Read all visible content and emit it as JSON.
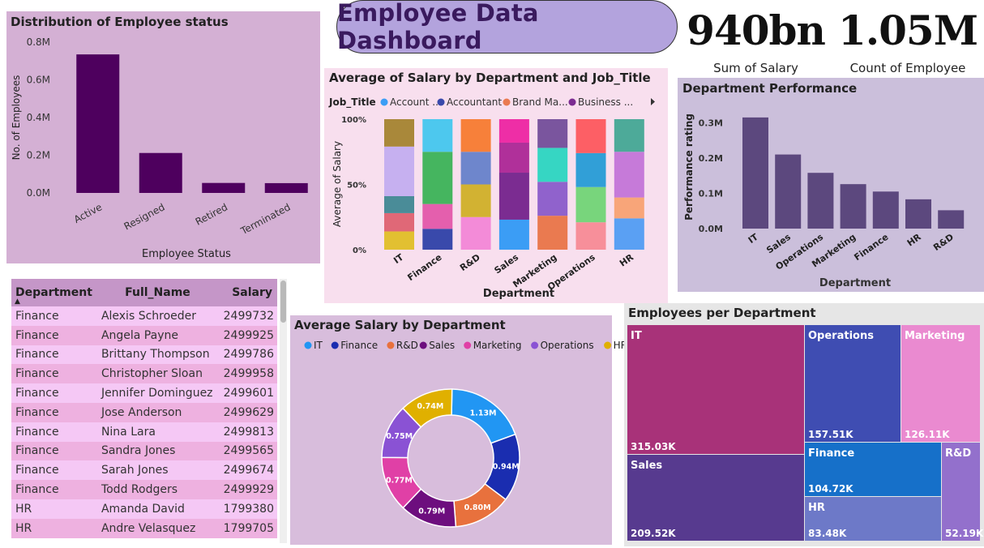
{
  "dashboard_title": "Employee Data Dashboard",
  "kpis": [
    {
      "value": "940bn",
      "label": "Sum of Salary"
    },
    {
      "value": "1.05M",
      "label": "Count of Employee"
    }
  ],
  "colors": {
    "status_bar": "#4e005e",
    "perf_bar": "#5c487e",
    "panel_status": "#d4b0d4",
    "panel_stack": "#f8dfee",
    "panel_perf": "#cbbfdb",
    "panel_donut": "#d8bddc",
    "panel_tree": "#e6e6e6",
    "title_pill": "#b3a3dd"
  },
  "status_chart": {
    "title": "Distribution of Employee status",
    "chart_data": {
      "type": "bar",
      "categories": [
        "Active",
        "Resigned",
        "Retired",
        "Terminated"
      ],
      "values": [
        735000,
        212000,
        53000,
        52000
      ],
      "xlabel": "Employee Status",
      "ylabel": "No. of Employees",
      "ylim": [
        0,
        800000
      ],
      "yticks": [
        "0.0M",
        "0.2M",
        "0.4M",
        "0.6M",
        "0.8M"
      ]
    }
  },
  "stacked_chart": {
    "title": "Average of Salary by Department and Job_Title",
    "legend_title": "Job_Title",
    "legend_items": [
      {
        "label": "Account ...",
        "color": "#3b9df5"
      },
      {
        "label": "Accountant",
        "color": "#3949ab"
      },
      {
        "label": "Brand Ma...",
        "color": "#ea7a50"
      },
      {
        "label": "Business ...",
        "color": "#7b2c91"
      }
    ],
    "legend_more_icon": "chevron-right-icon",
    "chart_data": {
      "type": "bar",
      "stacked": "percent",
      "categories": [
        "IT",
        "Finance",
        "R&D",
        "Sales",
        "Marketing",
        "Operations",
        "HR"
      ],
      "xlabel": "Department",
      "ylabel": "Average of Salary",
      "yticks": [
        "0%",
        "50%",
        "100%"
      ],
      "segments": [
        [
          {
            "v": 14,
            "c": "#e2c031"
          },
          {
            "v": 14,
            "c": "#e06877"
          },
          {
            "v": 13,
            "c": "#4a8c98"
          },
          {
            "v": 38,
            "c": "#c6b0f0"
          },
          {
            "v": 21,
            "c": "#a9883a"
          }
        ],
        [
          {
            "v": 16,
            "c": "#3949ab"
          },
          {
            "v": 19,
            "c": "#e45fad"
          },
          {
            "v": 40,
            "c": "#45b55f"
          },
          {
            "v": 25,
            "c": "#4dc8ee"
          }
        ],
        [
          {
            "v": 25,
            "c": "#f38bd8"
          },
          {
            "v": 25,
            "c": "#d2b232"
          },
          {
            "v": 25,
            "c": "#6e86cc"
          },
          {
            "v": 25,
            "c": "#f7803a"
          }
        ],
        [
          {
            "v": 23,
            "c": "#3b9df5"
          },
          {
            "v": 36,
            "c": "#7b2c91"
          },
          {
            "v": 23,
            "c": "#b0309a"
          },
          {
            "v": 18,
            "c": "#ee2ea6"
          }
        ],
        [
          {
            "v": 26,
            "c": "#ea7a50"
          },
          {
            "v": 26,
            "c": "#9062cc"
          },
          {
            "v": 26,
            "c": "#36d6c3"
          },
          {
            "v": 22,
            "c": "#7a559e"
          }
        ],
        [
          {
            "v": 21,
            "c": "#f78f9a"
          },
          {
            "v": 27,
            "c": "#78d57c"
          },
          {
            "v": 26,
            "c": "#319fd7"
          },
          {
            "v": 26,
            "c": "#fd5f65"
          }
        ],
        [
          {
            "v": 24,
            "c": "#5aa0f3"
          },
          {
            "v": 16,
            "c": "#f8a579"
          },
          {
            "v": 35,
            "c": "#c67ad9"
          },
          {
            "v": 25,
            "c": "#4daa99"
          }
        ]
      ]
    }
  },
  "perf_chart": {
    "title": "Department Performance",
    "chart_data": {
      "type": "bar",
      "categories": [
        "IT",
        "Sales",
        "Operations",
        "Marketing",
        "Finance",
        "HR",
        "R&D"
      ],
      "values": [
        315000,
        210000,
        158000,
        126000,
        105000,
        83000,
        52000
      ],
      "xlabel": "Department",
      "ylabel": "Performance rating",
      "ylim": [
        0,
        340000
      ],
      "yticks": [
        "0.0M",
        "0.1M",
        "0.2M",
        "0.3M"
      ]
    }
  },
  "donut_chart": {
    "title": "Average Salary by Department",
    "legend": [
      {
        "label": "IT",
        "color": "#2196f3"
      },
      {
        "label": "Finance",
        "color": "#1a2db0"
      },
      {
        "label": "R&D",
        "color": "#e8713d"
      },
      {
        "label": "Sales",
        "color": "#6d0e7e"
      },
      {
        "label": "Marketing",
        "color": "#e040a6"
      },
      {
        "label": "Operations",
        "color": "#8a52d4"
      },
      {
        "label": "HR",
        "color": "#e0b000"
      }
    ],
    "chart_data": {
      "type": "pie",
      "hole": true,
      "categories": [
        "IT",
        "Finance",
        "R&D",
        "Sales",
        "Marketing",
        "Operations",
        "HR"
      ],
      "values": [
        1.13,
        0.94,
        0.8,
        0.79,
        0.77,
        0.75,
        0.74
      ],
      "labels": [
        "1.13M",
        "0.94M",
        "0.80M",
        "0.79M",
        "0.77M",
        "0.75M",
        "0.74M"
      ]
    }
  },
  "treemap": {
    "title": "Employees per Department",
    "chart_data": {
      "type": "treemap",
      "items": [
        {
          "name": "IT",
          "value": "315.03K",
          "color": "#a83279"
        },
        {
          "name": "Sales",
          "value": "209.52K",
          "color": "#573a8f"
        },
        {
          "name": "Operations",
          "value": "157.51K",
          "color": "#3f4db2"
        },
        {
          "name": "Marketing",
          "value": "126.11K",
          "color": "#ea8ad0"
        },
        {
          "name": "Finance",
          "value": "104.72K",
          "color": "#1670c9"
        },
        {
          "name": "HR",
          "value": "83.48K",
          "color": "#6d79c8"
        },
        {
          "name": "R&D",
          "value": "52.19K",
          "color": "#9370cc"
        }
      ]
    }
  },
  "table": {
    "headers": [
      "Department",
      "Full_Name",
      "Salary"
    ],
    "rows": [
      [
        "Finance",
        "Alexis Schroeder",
        "2499732"
      ],
      [
        "Finance",
        "Angela Payne",
        "2499925"
      ],
      [
        "Finance",
        "Brittany Thompson",
        "2499786"
      ],
      [
        "Finance",
        "Christopher Sloan",
        "2499958"
      ],
      [
        "Finance",
        "Jennifer Dominguez",
        "2499601"
      ],
      [
        "Finance",
        "Jose Anderson",
        "2499629"
      ],
      [
        "Finance",
        "Nina Lara",
        "2499813"
      ],
      [
        "Finance",
        "Sandra Jones",
        "2499565"
      ],
      [
        "Finance",
        "Sarah Jones",
        "2499674"
      ],
      [
        "Finance",
        "Todd Rodgers",
        "2499929"
      ],
      [
        "HR",
        "Amanda David",
        "1799380"
      ],
      [
        "HR",
        "Andre Velasquez",
        "1799705"
      ]
    ]
  }
}
